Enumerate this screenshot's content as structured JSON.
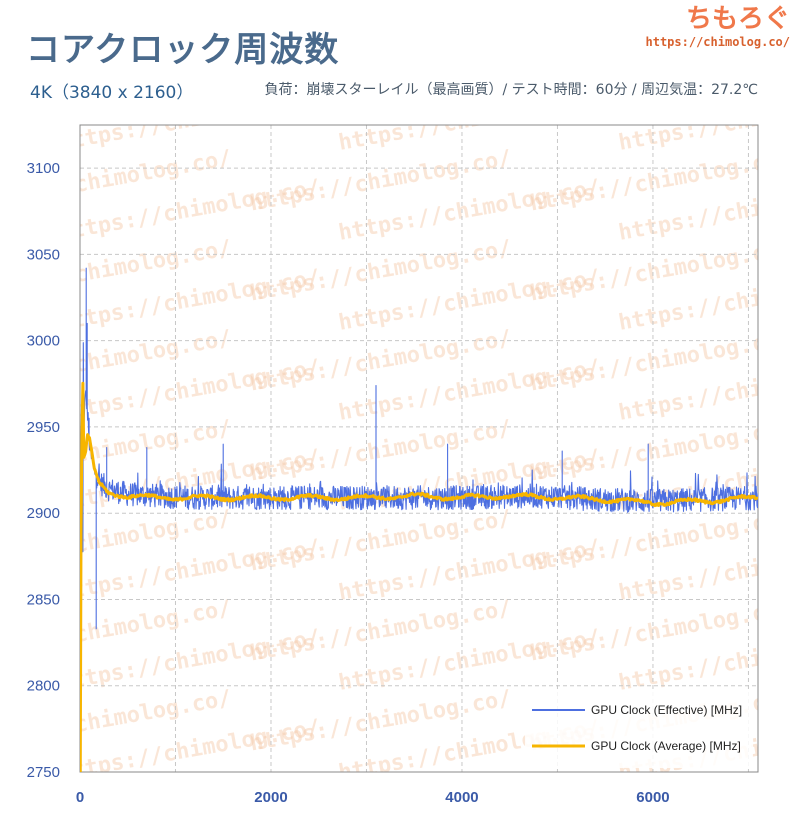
{
  "header": {
    "title": "コアクロック周波数",
    "subtitle_left": "4K（3840 x 2160）",
    "subtitle_right": "負荷：崩壊スターレイル（最高画質）/ テスト時間：60分 / 周辺気温：27.2℃"
  },
  "brand": {
    "name": "ちもろぐ",
    "url": "https://chimolog.co/"
  },
  "watermark_text": "https://chimolog.co/",
  "colors": {
    "effective": "#4d6fe0",
    "average": "#f7b500",
    "grid": "#c8c8c8",
    "axis_text": "#3a5aa8",
    "watermark": "#f5c9a8"
  },
  "chart_data": {
    "type": "line",
    "xlim": [
      0,
      7100
    ],
    "ylim": [
      2750,
      3125
    ],
    "xticks": [
      0,
      2000,
      4000,
      6000
    ],
    "yticks": [
      2750,
      2800,
      2850,
      2900,
      2950,
      3000,
      3050,
      3100
    ],
    "grid": true,
    "legend_position": "bottom-right",
    "series": [
      {
        "name": "GPU Clock (Effective) [MHz]",
        "color": "#4d6fe0",
        "baseline_x": [
          0,
          10,
          30,
          60,
          90,
          110,
          150,
          200,
          300,
          500,
          800,
          1200,
          2000,
          3000,
          4000,
          4800,
          5400,
          6000,
          6600,
          7100
        ],
        "baseline_y": [
          2750,
          2840,
          2930,
          2975,
          2948,
          2935,
          2925,
          2918,
          2914,
          2911,
          2910,
          2909,
          2909,
          2909,
          2909,
          2910,
          2908,
          2907,
          2908,
          2909
        ],
        "spikes": [
          {
            "x": 65,
            "y": 3042
          },
          {
            "x": 75,
            "y": 3010
          },
          {
            "x": 95,
            "y": 2955
          },
          {
            "x": 170,
            "y": 2833
          },
          {
            "x": 280,
            "y": 2938
          },
          {
            "x": 700,
            "y": 2938
          },
          {
            "x": 1500,
            "y": 2940
          },
          {
            "x": 3100,
            "y": 2974
          },
          {
            "x": 3850,
            "y": 2940
          },
          {
            "x": 5050,
            "y": 2936
          },
          {
            "x": 5950,
            "y": 2940
          }
        ]
      },
      {
        "name": "GPU Clock (Average) [MHz]",
        "color": "#f7b500",
        "x": [
          0,
          10,
          30,
          60,
          80,
          100,
          120,
          150,
          200,
          300,
          500,
          800,
          1200,
          1800,
          2500,
          3000,
          3500,
          4000,
          4500,
          5000,
          5500,
          6000,
          6500,
          7100
        ],
        "y": [
          2750,
          2880,
          2930,
          2935,
          2945,
          2942,
          2935,
          2925,
          2917,
          2912,
          2910,
          2909,
          2909,
          2909,
          2909,
          2909,
          2910,
          2909,
          2910,
          2909,
          2908,
          2906,
          2907,
          2909
        ]
      }
    ]
  }
}
